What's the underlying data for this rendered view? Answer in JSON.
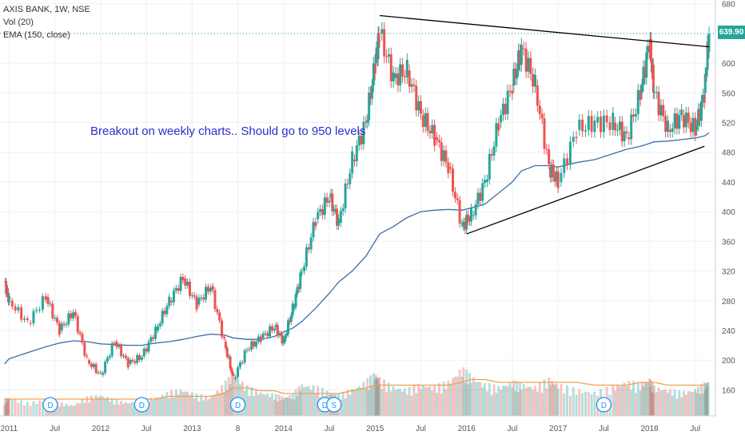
{
  "legend": {
    "symbol": "AXIS BANK, 1W, NSE",
    "volume": "Vol (20)",
    "ema": "EMA (150, close)"
  },
  "annotation": "Breakout on weekly charts.. Should go to 950 levels",
  "last_price_label": "639.90",
  "colors": {
    "up": "#26a69a",
    "down": "#ef5350",
    "ema": "#3a6ea8",
    "vol_ma": "#f0a050",
    "trendline": "#000000",
    "marker": "#2196f3"
  },
  "chart_data": {
    "type": "line",
    "title": "AXIS BANK, 1W, NSE",
    "y_axis_ticks": [
      160,
      200,
      240,
      280,
      320,
      360,
      400,
      440,
      480,
      520,
      560,
      600,
      640,
      680
    ],
    "ylim": [
      125,
      685
    ],
    "x_axis_ticks": [
      "2011",
      "Jul",
      "2012",
      "Jul",
      "2013",
      "8",
      "2014",
      "Jul",
      "2015",
      "Jul",
      "2016",
      "Jul",
      "2017",
      "Jul",
      "2018",
      "Jul"
    ],
    "x": [
      2010.95,
      2011.0,
      2011.2,
      2011.4,
      2011.55,
      2011.7,
      2011.85,
      2012.0,
      2012.15,
      2012.3,
      2012.45,
      2012.6,
      2012.75,
      2012.9,
      2013.05,
      2013.2,
      2013.35,
      2013.45,
      2013.6,
      2013.75,
      2013.9,
      2014.0,
      2014.1,
      2014.2,
      2014.35,
      2014.5,
      2014.6,
      2014.75,
      2014.9,
      2015.0,
      2015.05,
      2015.2,
      2015.35,
      2015.5,
      2015.65,
      2015.8,
      2015.95,
      2016.05,
      2016.2,
      2016.35,
      2016.5,
      2016.6,
      2016.75,
      2016.9,
      2017.0,
      2017.2,
      2017.4,
      2017.6,
      2017.75,
      2017.9,
      2018.0,
      2018.05,
      2018.2,
      2018.35,
      2018.5,
      2018.6,
      2018.65
    ],
    "series": [
      {
        "name": "AXIS BANK",
        "values": [
          305,
          280,
          250,
          285,
          240,
          265,
          200,
          180,
          225,
          195,
          205,
          240,
          280,
          310,
          275,
          300,
          225,
          175,
          215,
          230,
          245,
          225,
          270,
          320,
          390,
          420,
          385,
          470,
          520,
          600,
          640,
          580,
          590,
          530,
          500,
          460,
          380,
          395,
          440,
          520,
          570,
          620,
          570,
          460,
          440,
          510,
          520,
          520,
          500,
          560,
          630,
          560,
          510,
          530,
          510,
          560,
          639.9
        ]
      },
      {
        "name": "EMA (150, close)",
        "values": [
          195,
          202,
          210,
          218,
          223,
          226,
          225,
          222,
          221,
          220,
          220,
          223,
          225,
          228,
          232,
          235,
          234,
          230,
          228,
          228,
          232,
          238,
          243,
          252,
          270,
          290,
          305,
          320,
          340,
          360,
          370,
          380,
          392,
          400,
          402,
          403,
          402,
          405,
          410,
          425,
          440,
          455,
          462,
          462,
          460,
          466,
          470,
          478,
          484,
          488,
          492,
          494,
          495,
          497,
          499,
          502,
          506
        ]
      }
    ],
    "volume": [
      6,
      7,
      5,
      6,
      5,
      4,
      7,
      8,
      6,
      5,
      6,
      7,
      9,
      10,
      8,
      7,
      12,
      16,
      11,
      9,
      8,
      7,
      8,
      12,
      11,
      9,
      8,
      10,
      13,
      16,
      14,
      11,
      10,
      12,
      11,
      13,
      18,
      15,
      12,
      11,
      13,
      12,
      11,
      14,
      12,
      10,
      9,
      11,
      13,
      12,
      14,
      11,
      10,
      9,
      10,
      12,
      13
    ],
    "volume_ma": [
      6,
      6,
      6,
      6,
      6,
      6,
      6,
      6,
      6,
      6,
      6,
      6,
      7,
      7,
      7,
      7,
      8,
      10,
      10,
      9,
      9,
      8,
      8,
      8,
      8,
      8,
      8,
      9,
      10,
      11,
      11,
      11,
      11,
      11,
      11,
      11,
      12,
      13,
      13,
      12,
      12,
      12,
      12,
      12,
      12,
      12,
      11,
      11,
      11,
      12,
      12,
      12,
      11,
      11,
      11,
      11,
      12
    ],
    "trendlines": [
      {
        "from": [
          2015.05,
          664
        ],
        "to": [
          2018.65,
          622
        ]
      },
      {
        "from": [
          2016.0,
          370
        ],
        "to": [
          2018.6,
          488
        ]
      }
    ],
    "event_markers": [
      {
        "x": 2011.45,
        "label": "D"
      },
      {
        "x": 2012.45,
        "label": "D"
      },
      {
        "x": 2013.5,
        "label": "D"
      },
      {
        "x": 2014.45,
        "label": "D"
      },
      {
        "x": 2014.55,
        "label": "S"
      },
      {
        "x": 2017.5,
        "label": "D"
      }
    ],
    "last_price": 639.9
  }
}
